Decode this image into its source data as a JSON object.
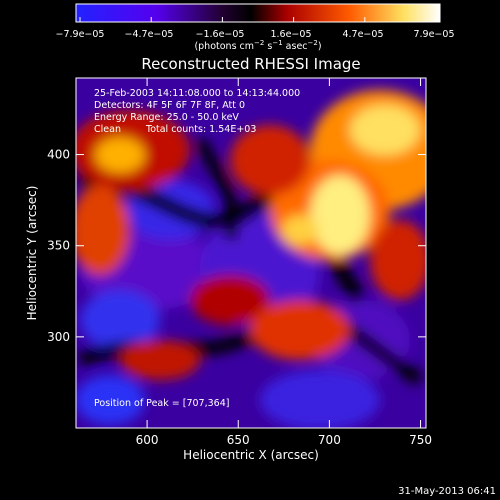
{
  "chart_data": {
    "type": "heatmap",
    "title": "Reconstructed RHESSI Image",
    "colorbar": {
      "ticks": [
        "−7.9e−05",
        "−4.7e−05",
        "−1.6e−05",
        "1.6e−05",
        "4.7e−05",
        "7.9e−05"
      ],
      "min": -7.9e-05,
      "max": 7.9e-05,
      "unit_prefix": "(photons cm",
      "unit_sup1": "−2",
      "unit_mid": " s",
      "unit_sup2": "−1",
      "unit_mid2": " asec",
      "unit_sup3": "−2",
      "unit_suffix": ")",
      "colors": [
        "#2020ff",
        "#4a00ff",
        "#000000",
        "#b00000",
        "#ff5000",
        "#ffe070",
        "#ffffff"
      ]
    },
    "annotations": {
      "line1": "25-Feb-2003 14:11:08.000 to 14:13:44.000",
      "line2": "Detectors: 4F 5F 6F 7F 8F, Att 0",
      "line3": "Energy Range: 25.0 - 50.0 keV",
      "line4_a": "Clean",
      "line4_b": "Total counts: 1.54E+03",
      "peak": "Position of Peak = [707,364]"
    },
    "xlabel": "Heliocentric X (arcsec)",
    "ylabel": "Heliocentric Y (arcsec)",
    "xlim": [
      561,
      753
    ],
    "ylim": [
      250,
      442
    ],
    "xticks": [
      600,
      650,
      700,
      750
    ],
    "yticks": [
      300,
      350,
      400
    ],
    "peak": {
      "x": 707,
      "y": 364
    }
  },
  "footer": {
    "timestamp": "31-May-2013 06:41"
  }
}
